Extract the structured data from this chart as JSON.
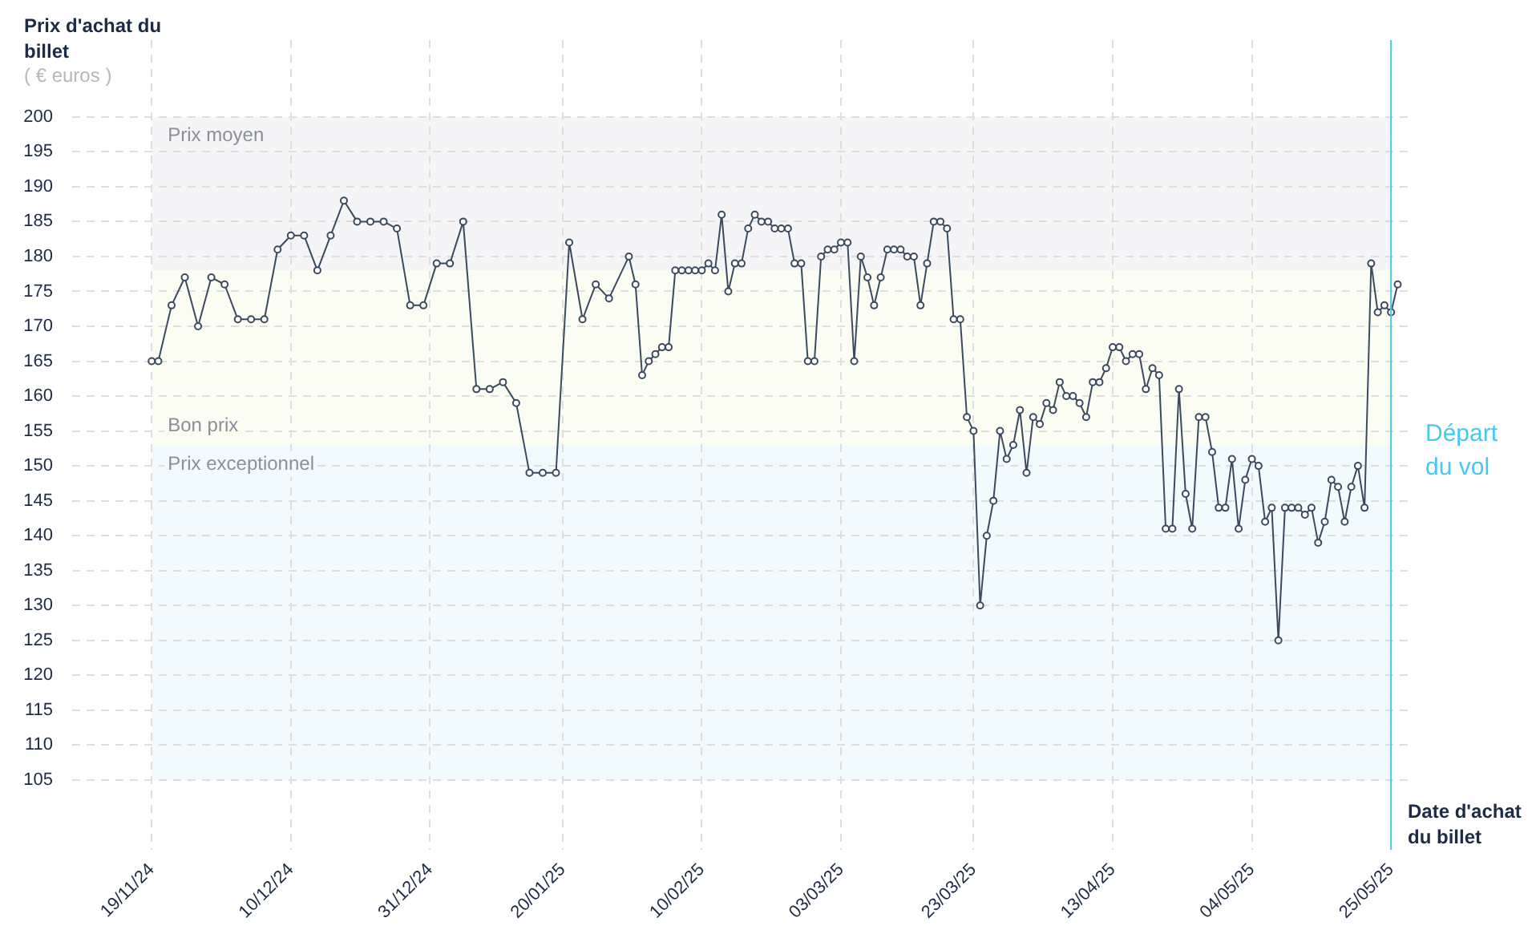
{
  "chart_data": {
    "type": "line",
    "ylabel": "Prix d'achat du billet",
    "xlabel": "Date d'achat du billet",
    "annotations": [
      "( € euros )"
    ],
    "series": [
      {
        "color": "#3b4a5f",
        "x": [
          "2024-11-19",
          "2024-11-20",
          "2024-11-22",
          "2024-11-24",
          "2024-11-26",
          "2024-11-28",
          "2024-11-30",
          "2024-12-02",
          "2024-12-04",
          "2024-12-06",
          "2024-12-08",
          "2024-12-10",
          "2024-12-12",
          "2024-12-14",
          "2024-12-16",
          "2024-12-18",
          "2024-12-20",
          "2024-12-22",
          "2024-12-24",
          "2024-12-26",
          "2024-12-28",
          "2024-12-30",
          "2025-01-01",
          "2025-01-03",
          "2025-01-05",
          "2025-01-07",
          "2025-01-09",
          "2025-01-11",
          "2025-01-13",
          "2025-01-15",
          "2025-01-17",
          "2025-01-19",
          "2025-01-21",
          "2025-01-23",
          "2025-01-25",
          "2025-01-27",
          "2025-01-30",
          "2025-01-31",
          "2025-02-01",
          "2025-02-02",
          "2025-02-03",
          "2025-02-04",
          "2025-02-05",
          "2025-02-06",
          "2025-02-07",
          "2025-02-08",
          "2025-02-09",
          "2025-02-10",
          "2025-02-11",
          "2025-02-12",
          "2025-02-13",
          "2025-02-14",
          "2025-02-15",
          "2025-02-16",
          "2025-02-17",
          "2025-02-18",
          "2025-02-19",
          "2025-02-20",
          "2025-02-21",
          "2025-02-22",
          "2025-02-23",
          "2025-02-24",
          "2025-02-25",
          "2025-02-26",
          "2025-02-27",
          "2025-02-28",
          "2025-03-01",
          "2025-03-02",
          "2025-03-03",
          "2025-03-04",
          "2025-03-05",
          "2025-03-06",
          "2025-03-07",
          "2025-03-08",
          "2025-03-09",
          "2025-03-10",
          "2025-03-11",
          "2025-03-12",
          "2025-03-13",
          "2025-03-14",
          "2025-03-15",
          "2025-03-16",
          "2025-03-17",
          "2025-03-18",
          "2025-03-19",
          "2025-03-20",
          "2025-03-21",
          "2025-03-22",
          "2025-03-23",
          "2025-03-24",
          "2025-03-25",
          "2025-03-26",
          "2025-03-27",
          "2025-03-28",
          "2025-03-29",
          "2025-03-30",
          "2025-03-31",
          "2025-04-01",
          "2025-04-02",
          "2025-04-03",
          "2025-04-04",
          "2025-04-05",
          "2025-04-06",
          "2025-04-07",
          "2025-04-08",
          "2025-04-09",
          "2025-04-10",
          "2025-04-11",
          "2025-04-12",
          "2025-04-13",
          "2025-04-14",
          "2025-04-15",
          "2025-04-16",
          "2025-04-17",
          "2025-04-18",
          "2025-04-19",
          "2025-04-20",
          "2025-04-21",
          "2025-04-22",
          "2025-04-23",
          "2025-04-24",
          "2025-04-25",
          "2025-04-26",
          "2025-04-27",
          "2025-04-28",
          "2025-04-29",
          "2025-04-30",
          "2025-05-01",
          "2025-05-02",
          "2025-05-03",
          "2025-05-04",
          "2025-05-05",
          "2025-05-06",
          "2025-05-07",
          "2025-05-08",
          "2025-05-09",
          "2025-05-10",
          "2025-05-11",
          "2025-05-12",
          "2025-05-13",
          "2025-05-14",
          "2025-05-15",
          "2025-05-16",
          "2025-05-17",
          "2025-05-18",
          "2025-05-19",
          "2025-05-20",
          "2025-05-21",
          "2025-05-22",
          "2025-05-23",
          "2025-05-24",
          "2025-05-25",
          "2025-05-26"
        ],
        "values": [
          165,
          165,
          173,
          177,
          170,
          177,
          176,
          171,
          171,
          171,
          181,
          183,
          183,
          178,
          183,
          188,
          185,
          185,
          185,
          184,
          173,
          173,
          179,
          179,
          185,
          161,
          161,
          162,
          159,
          149,
          149,
          149,
          182,
          171,
          176,
          174,
          180,
          176,
          163,
          165,
          166,
          167,
          167,
          178,
          178,
          178,
          178,
          178,
          179,
          178,
          186,
          175,
          179,
          179,
          184,
          186,
          185,
          185,
          184,
          184,
          184,
          179,
          179,
          165,
          165,
          180,
          181,
          181,
          182,
          182,
          165,
          180,
          177,
          173,
          177,
          181,
          181,
          181,
          180,
          180,
          173,
          179,
          185,
          185,
          184,
          171,
          171,
          157,
          155,
          130,
          140,
          145,
          155,
          151,
          153,
          158,
          149,
          157,
          156,
          159,
          158,
          162,
          160,
          160,
          159,
          157,
          162,
          162,
          164,
          167,
          167,
          165,
          166,
          166,
          161,
          164,
          163,
          141,
          141,
          161,
          146,
          141,
          157,
          157,
          152,
          144,
          144,
          151,
          141,
          148,
          151,
          150,
          142,
          144,
          125,
          144,
          144,
          144,
          143,
          144,
          139,
          142,
          148,
          147,
          142,
          147,
          150,
          144,
          179,
          172,
          173,
          172,
          176
        ]
      }
    ],
    "xlim": [
      "2024-11-07",
      "2025-05-28"
    ],
    "xticks": [
      {
        "value": "2024-11-19",
        "label": "19/11/24"
      },
      {
        "value": "2024-12-10",
        "label": "10/12/24"
      },
      {
        "value": "2024-12-31",
        "label": "31/12/24"
      },
      {
        "value": "2025-01-20",
        "label": "20/01/25"
      },
      {
        "value": "2025-02-10",
        "label": "10/02/25"
      },
      {
        "value": "2025-03-03",
        "label": "03/03/25"
      },
      {
        "value": "2025-03-23",
        "label": "23/03/25"
      },
      {
        "value": "2025-04-13",
        "label": "13/04/25"
      },
      {
        "value": "2025-05-04",
        "label": "04/05/25"
      },
      {
        "value": "2025-05-25",
        "label": "25/05/25"
      }
    ],
    "ylim": [
      95,
      211
    ],
    "yticks": [
      105,
      110,
      115,
      120,
      125,
      130,
      135,
      140,
      145,
      150,
      155,
      160,
      165,
      170,
      175,
      180,
      185,
      190,
      195,
      200
    ],
    "bands": [
      {
        "axis": "y",
        "from": 178,
        "to": 200,
        "label": "Prix moyen",
        "color": "#f5f5f7"
      },
      {
        "axis": "y",
        "from": 153,
        "to": 178,
        "label": "Bon prix",
        "color": "#fbfcf2"
      },
      {
        "axis": "y",
        "from": 105,
        "to": 153,
        "label": "Prix exceptionnel",
        "color": "#f1fbfe"
      }
    ],
    "ref_lines": [
      {
        "axis": "x",
        "value": "2025-05-25",
        "label": "Départ du vol",
        "color": "#46c8ef"
      }
    ],
    "grid": true,
    "legend": false,
    "marker": "circle",
    "line_style": "solid"
  }
}
